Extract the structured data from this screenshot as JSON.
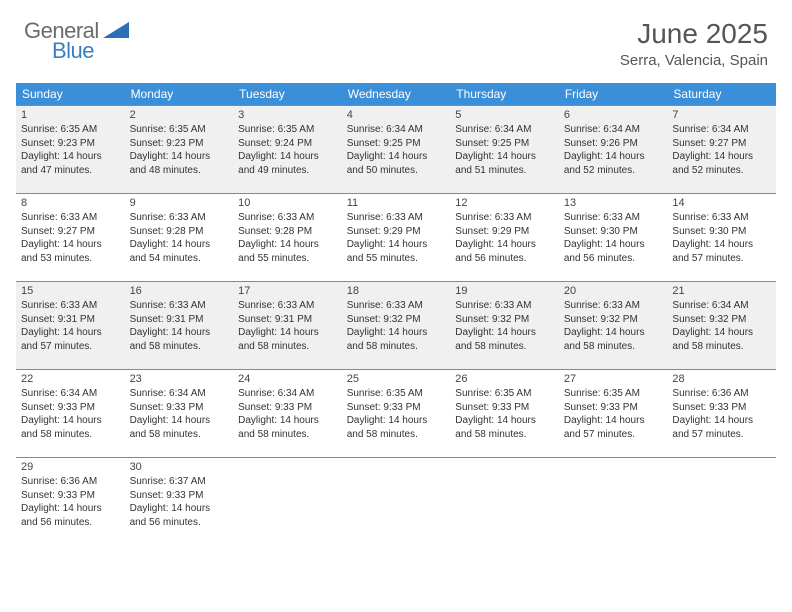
{
  "logo": {
    "general": "General",
    "blue": "Blue"
  },
  "title": "June 2025",
  "location": "Serra, Valencia, Spain",
  "colors": {
    "header_bg": "#3a8fd8",
    "header_text": "#ffffff",
    "cell_border": "#6b8fb0",
    "shaded_bg": "#f0f0f0",
    "text": "#333333",
    "logo_gray": "#6b6b6b",
    "logo_blue": "#3a7fc4"
  },
  "day_headers": [
    "Sunday",
    "Monday",
    "Tuesday",
    "Wednesday",
    "Thursday",
    "Friday",
    "Saturday"
  ],
  "weeks": [
    {
      "shaded": true,
      "days": [
        {
          "n": "1",
          "sr": "Sunrise: 6:35 AM",
          "ss": "Sunset: 9:23 PM",
          "d1": "Daylight: 14 hours",
          "d2": "and 47 minutes."
        },
        {
          "n": "2",
          "sr": "Sunrise: 6:35 AM",
          "ss": "Sunset: 9:23 PM",
          "d1": "Daylight: 14 hours",
          "d2": "and 48 minutes."
        },
        {
          "n": "3",
          "sr": "Sunrise: 6:35 AM",
          "ss": "Sunset: 9:24 PM",
          "d1": "Daylight: 14 hours",
          "d2": "and 49 minutes."
        },
        {
          "n": "4",
          "sr": "Sunrise: 6:34 AM",
          "ss": "Sunset: 9:25 PM",
          "d1": "Daylight: 14 hours",
          "d2": "and 50 minutes."
        },
        {
          "n": "5",
          "sr": "Sunrise: 6:34 AM",
          "ss": "Sunset: 9:25 PM",
          "d1": "Daylight: 14 hours",
          "d2": "and 51 minutes."
        },
        {
          "n": "6",
          "sr": "Sunrise: 6:34 AM",
          "ss": "Sunset: 9:26 PM",
          "d1": "Daylight: 14 hours",
          "d2": "and 52 minutes."
        },
        {
          "n": "7",
          "sr": "Sunrise: 6:34 AM",
          "ss": "Sunset: 9:27 PM",
          "d1": "Daylight: 14 hours",
          "d2": "and 52 minutes."
        }
      ]
    },
    {
      "shaded": false,
      "days": [
        {
          "n": "8",
          "sr": "Sunrise: 6:33 AM",
          "ss": "Sunset: 9:27 PM",
          "d1": "Daylight: 14 hours",
          "d2": "and 53 minutes."
        },
        {
          "n": "9",
          "sr": "Sunrise: 6:33 AM",
          "ss": "Sunset: 9:28 PM",
          "d1": "Daylight: 14 hours",
          "d2": "and 54 minutes."
        },
        {
          "n": "10",
          "sr": "Sunrise: 6:33 AM",
          "ss": "Sunset: 9:28 PM",
          "d1": "Daylight: 14 hours",
          "d2": "and 55 minutes."
        },
        {
          "n": "11",
          "sr": "Sunrise: 6:33 AM",
          "ss": "Sunset: 9:29 PM",
          "d1": "Daylight: 14 hours",
          "d2": "and 55 minutes."
        },
        {
          "n": "12",
          "sr": "Sunrise: 6:33 AM",
          "ss": "Sunset: 9:29 PM",
          "d1": "Daylight: 14 hours",
          "d2": "and 56 minutes."
        },
        {
          "n": "13",
          "sr": "Sunrise: 6:33 AM",
          "ss": "Sunset: 9:30 PM",
          "d1": "Daylight: 14 hours",
          "d2": "and 56 minutes."
        },
        {
          "n": "14",
          "sr": "Sunrise: 6:33 AM",
          "ss": "Sunset: 9:30 PM",
          "d1": "Daylight: 14 hours",
          "d2": "and 57 minutes."
        }
      ]
    },
    {
      "shaded": true,
      "days": [
        {
          "n": "15",
          "sr": "Sunrise: 6:33 AM",
          "ss": "Sunset: 9:31 PM",
          "d1": "Daylight: 14 hours",
          "d2": "and 57 minutes."
        },
        {
          "n": "16",
          "sr": "Sunrise: 6:33 AM",
          "ss": "Sunset: 9:31 PM",
          "d1": "Daylight: 14 hours",
          "d2": "and 58 minutes."
        },
        {
          "n": "17",
          "sr": "Sunrise: 6:33 AM",
          "ss": "Sunset: 9:31 PM",
          "d1": "Daylight: 14 hours",
          "d2": "and 58 minutes."
        },
        {
          "n": "18",
          "sr": "Sunrise: 6:33 AM",
          "ss": "Sunset: 9:32 PM",
          "d1": "Daylight: 14 hours",
          "d2": "and 58 minutes."
        },
        {
          "n": "19",
          "sr": "Sunrise: 6:33 AM",
          "ss": "Sunset: 9:32 PM",
          "d1": "Daylight: 14 hours",
          "d2": "and 58 minutes."
        },
        {
          "n": "20",
          "sr": "Sunrise: 6:33 AM",
          "ss": "Sunset: 9:32 PM",
          "d1": "Daylight: 14 hours",
          "d2": "and 58 minutes."
        },
        {
          "n": "21",
          "sr": "Sunrise: 6:34 AM",
          "ss": "Sunset: 9:32 PM",
          "d1": "Daylight: 14 hours",
          "d2": "and 58 minutes."
        }
      ]
    },
    {
      "shaded": false,
      "days": [
        {
          "n": "22",
          "sr": "Sunrise: 6:34 AM",
          "ss": "Sunset: 9:33 PM",
          "d1": "Daylight: 14 hours",
          "d2": "and 58 minutes."
        },
        {
          "n": "23",
          "sr": "Sunrise: 6:34 AM",
          "ss": "Sunset: 9:33 PM",
          "d1": "Daylight: 14 hours",
          "d2": "and 58 minutes."
        },
        {
          "n": "24",
          "sr": "Sunrise: 6:34 AM",
          "ss": "Sunset: 9:33 PM",
          "d1": "Daylight: 14 hours",
          "d2": "and 58 minutes."
        },
        {
          "n": "25",
          "sr": "Sunrise: 6:35 AM",
          "ss": "Sunset: 9:33 PM",
          "d1": "Daylight: 14 hours",
          "d2": "and 58 minutes."
        },
        {
          "n": "26",
          "sr": "Sunrise: 6:35 AM",
          "ss": "Sunset: 9:33 PM",
          "d1": "Daylight: 14 hours",
          "d2": "and 58 minutes."
        },
        {
          "n": "27",
          "sr": "Sunrise: 6:35 AM",
          "ss": "Sunset: 9:33 PM",
          "d1": "Daylight: 14 hours",
          "d2": "and 57 minutes."
        },
        {
          "n": "28",
          "sr": "Sunrise: 6:36 AM",
          "ss": "Sunset: 9:33 PM",
          "d1": "Daylight: 14 hours",
          "d2": "and 57 minutes."
        }
      ]
    },
    {
      "shaded": false,
      "days": [
        {
          "n": "29",
          "sr": "Sunrise: 6:36 AM",
          "ss": "Sunset: 9:33 PM",
          "d1": "Daylight: 14 hours",
          "d2": "and 56 minutes."
        },
        {
          "n": "30",
          "sr": "Sunrise: 6:37 AM",
          "ss": "Sunset: 9:33 PM",
          "d1": "Daylight: 14 hours",
          "d2": "and 56 minutes."
        },
        {
          "empty": true
        },
        {
          "empty": true
        },
        {
          "empty": true
        },
        {
          "empty": true
        },
        {
          "empty": true
        }
      ]
    }
  ]
}
